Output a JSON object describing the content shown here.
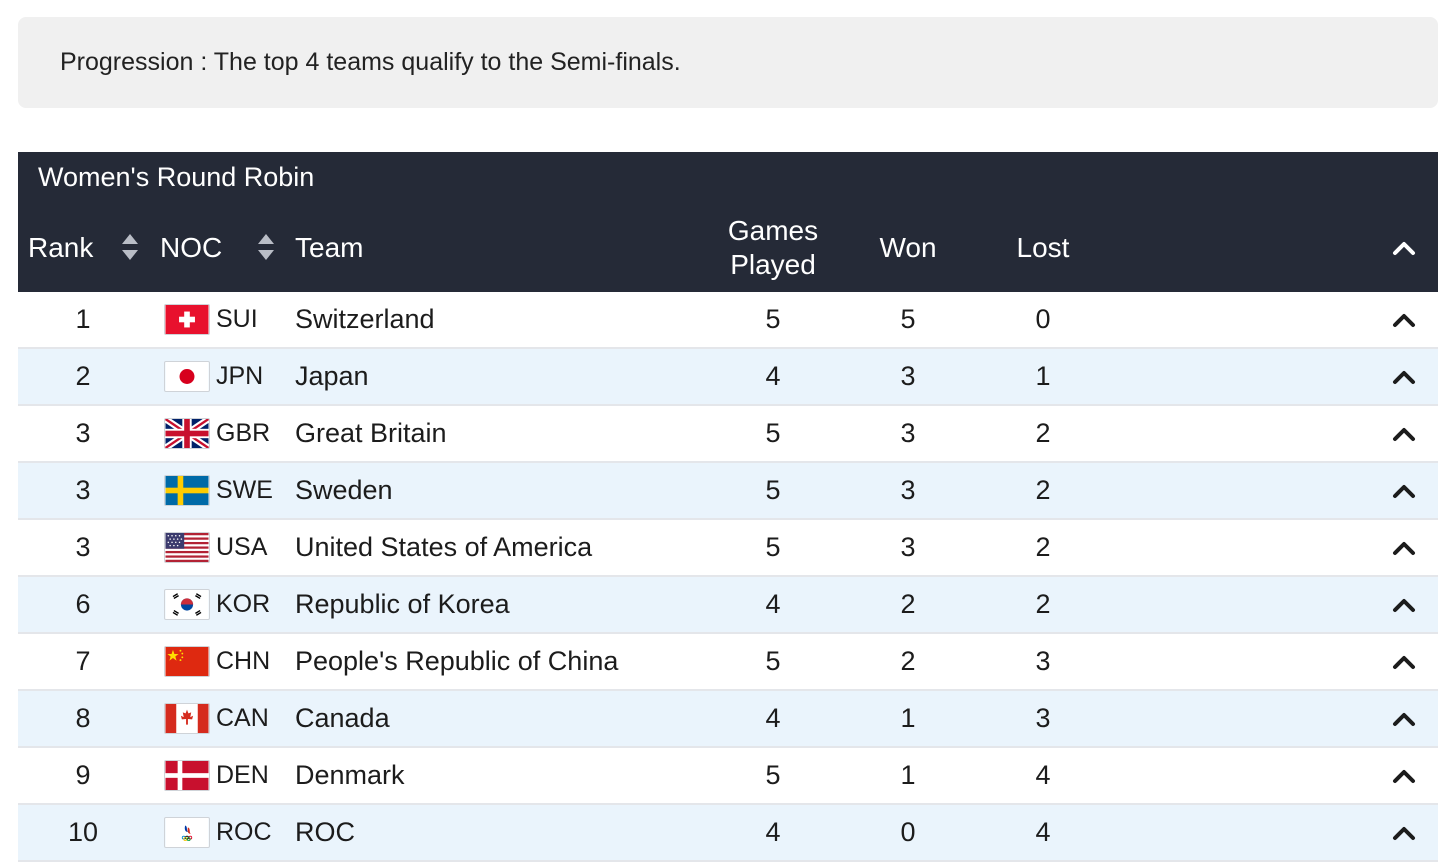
{
  "notice": "Progression : The top 4 teams qualify to the Semi-finals.",
  "table": {
    "caption": "Women's Round Robin",
    "headers": {
      "rank": "Rank",
      "noc": "NOC",
      "team": "Team",
      "games_played_line1": "Games",
      "games_played_line2": "Played",
      "won": "Won",
      "lost": "Lost"
    },
    "rows": [
      {
        "rank": "1",
        "noc": "SUI",
        "flag": "switzerland-flag-icon",
        "team": "Switzerland",
        "gp": "5",
        "won": "5",
        "lost": "0"
      },
      {
        "rank": "2",
        "noc": "JPN",
        "flag": "japan-flag-icon",
        "team": "Japan",
        "gp": "4",
        "won": "3",
        "lost": "1"
      },
      {
        "rank": "3",
        "noc": "GBR",
        "flag": "great-britain-flag-icon",
        "team": "Great Britain",
        "gp": "5",
        "won": "3",
        "lost": "2"
      },
      {
        "rank": "3",
        "noc": "SWE",
        "flag": "sweden-flag-icon",
        "team": "Sweden",
        "gp": "5",
        "won": "3",
        "lost": "2"
      },
      {
        "rank": "3",
        "noc": "USA",
        "flag": "usa-flag-icon",
        "team": "United States of America",
        "gp": "5",
        "won": "3",
        "lost": "2"
      },
      {
        "rank": "6",
        "noc": "KOR",
        "flag": "korea-flag-icon",
        "team": "Republic of Korea",
        "gp": "4",
        "won": "2",
        "lost": "2"
      },
      {
        "rank": "7",
        "noc": "CHN",
        "flag": "china-flag-icon",
        "team": "People's Republic of China",
        "gp": "5",
        "won": "2",
        "lost": "3"
      },
      {
        "rank": "8",
        "noc": "CAN",
        "flag": "canada-flag-icon",
        "team": "Canada",
        "gp": "4",
        "won": "1",
        "lost": "3"
      },
      {
        "rank": "9",
        "noc": "DEN",
        "flag": "denmark-flag-icon",
        "team": "Denmark",
        "gp": "5",
        "won": "1",
        "lost": "4"
      },
      {
        "rank": "10",
        "noc": "ROC",
        "flag": "roc-flag-icon",
        "team": "ROC",
        "gp": "4",
        "won": "0",
        "lost": "4"
      }
    ]
  },
  "colors": {
    "header_bg": "#252a37",
    "alt_row_bg": "#eaf4fc",
    "notice_bg": "#f0f0f0"
  }
}
